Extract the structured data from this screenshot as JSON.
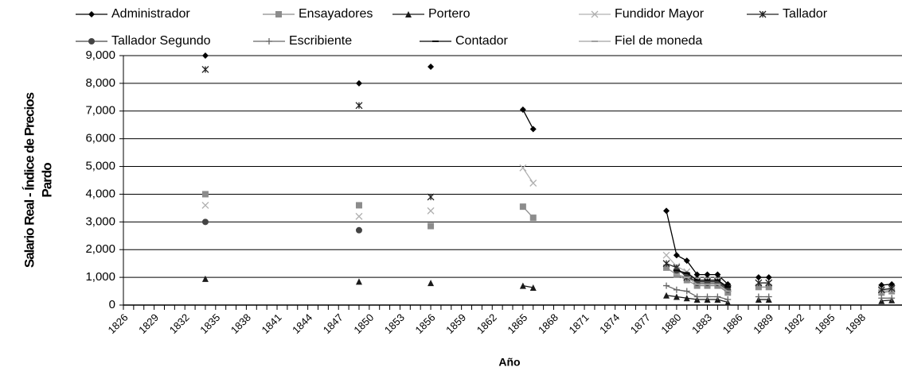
{
  "chart_data": {
    "type": "line",
    "xlabel": "Año",
    "ylabel": [
      "Salario Real - Índice de Precios",
      "Pardo"
    ],
    "x": [
      1834,
      1849,
      1856,
      1865,
      1866,
      1879,
      1880,
      1881,
      1882,
      1883,
      1884,
      1885,
      1888,
      1889,
      1900,
      1901
    ],
    "xlim": [
      1826,
      1902
    ],
    "xticks": [
      1826,
      1829,
      1832,
      1835,
      1838,
      1841,
      1844,
      1847,
      1850,
      1853,
      1856,
      1859,
      1862,
      1865,
      1868,
      1871,
      1874,
      1877,
      1880,
      1883,
      1886,
      1889,
      1892,
      1895,
      1898
    ],
    "ylim": [
      0,
      9000
    ],
    "yticks": [
      {
        "value": 0,
        "label": "0"
      },
      {
        "value": 1000,
        "label": "1,000"
      },
      {
        "value": 2000,
        "label": "2,000"
      },
      {
        "value": 3000,
        "label": "3,000"
      },
      {
        "value": 4000,
        "label": "4,000"
      },
      {
        "value": 5000,
        "label": "5,000"
      },
      {
        "value": 6000,
        "label": "6,000"
      },
      {
        "value": 7000,
        "label": "7,000"
      },
      {
        "value": 8000,
        "label": "8,000"
      },
      {
        "value": 9000,
        "label": "9,000"
      }
    ],
    "grid": true,
    "series": [
      {
        "name": "Administrador",
        "color": "#000000",
        "marker": "diamond",
        "values": [
          9000,
          8000,
          8600,
          7050,
          6350,
          3400,
          1800,
          1600,
          1100,
          1100,
          1100,
          750,
          1000,
          1000,
          720,
          750
        ]
      },
      {
        "name": "Ensayadores",
        "color": "#8c8c8c",
        "marker": "square",
        "values": [
          4000,
          3600,
          2850,
          3550,
          3150,
          1350,
          1100,
          900,
          700,
          700,
          700,
          450,
          650,
          650,
          450,
          500
        ]
      },
      {
        "name": "Portero",
        "color": "#1a1a1a",
        "marker": "triangle",
        "values": [
          950,
          850,
          800,
          700,
          630,
          350,
          300,
          250,
          200,
          200,
          200,
          100,
          200,
          200,
          150,
          180
        ]
      },
      {
        "name": "Fundidor Mayor",
        "color": "#b0b0b0",
        "marker": "x",
        "values": [
          3600,
          3200,
          3400,
          4950,
          4400,
          1800,
          1400,
          1200,
          900,
          900,
          900,
          600,
          800,
          800,
          500,
          550
        ]
      },
      {
        "name": "Tallador",
        "color": "#222222",
        "marker": "star",
        "values": [
          8500,
          7200,
          3900,
          null,
          null,
          1500,
          1350,
          1000,
          850,
          850,
          850,
          600,
          800,
          800,
          550,
          600
        ]
      },
      {
        "name": "Tallador Segundo",
        "color": "#444444",
        "marker": "circle",
        "values": [
          3000,
          2700,
          null,
          null,
          null,
          null,
          1250,
          1100,
          800,
          800,
          800,
          550,
          null,
          null,
          null,
          null
        ]
      },
      {
        "name": "Escribiente",
        "color": "#666666",
        "marker": "plus",
        "values": [
          null,
          null,
          null,
          null,
          null,
          700,
          550,
          500,
          300,
          300,
          300,
          200,
          300,
          300,
          250,
          250
        ]
      },
      {
        "name": "Contador",
        "color": "#000000",
        "marker": "dash",
        "values": [
          null,
          null,
          null,
          null,
          null,
          null,
          1250,
          1150,
          900,
          900,
          900,
          650,
          null,
          null,
          null,
          null
        ]
      },
      {
        "name": "Fiel de moneda",
        "color": "#a0a0a0",
        "marker": "dash",
        "values": [
          null,
          null,
          null,
          null,
          null,
          null,
          1100,
          1000,
          750,
          750,
          750,
          500,
          null,
          null,
          null,
          null
        ]
      }
    ]
  }
}
